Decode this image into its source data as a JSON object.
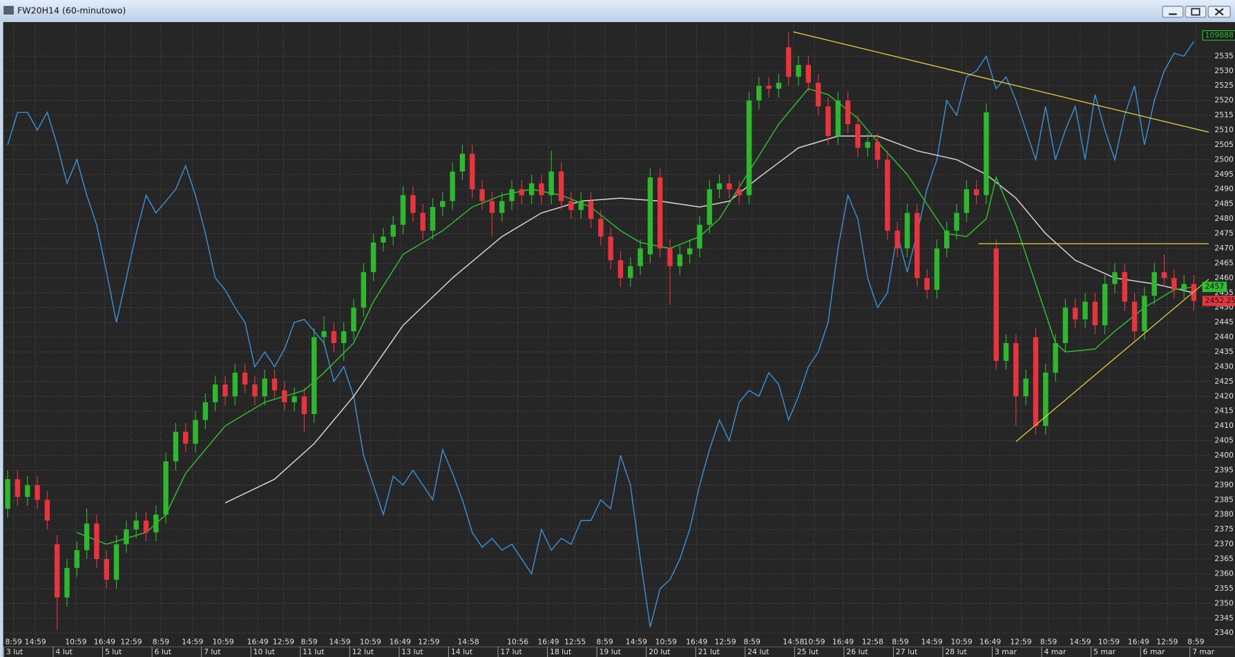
{
  "window": {
    "title": "FW20H14 (60-minutowo)"
  },
  "chart_data": {
    "type": "candlestick",
    "grid": true,
    "ylim": [
      2338,
      2546
    ],
    "yticks": [
      2340,
      2345,
      2350,
      2355,
      2360,
      2365,
      2370,
      2375,
      2380,
      2385,
      2390,
      2395,
      2400,
      2405,
      2410,
      2415,
      2420,
      2425,
      2430,
      2435,
      2440,
      2445,
      2450,
      2455,
      2460,
      2465,
      2470,
      2475,
      2480,
      2485,
      2490,
      2495,
      2500,
      2505,
      2510,
      2515,
      2520,
      2525,
      2530,
      2535
    ],
    "xlim": [
      -0.3,
      124
    ],
    "xticks": [
      {
        "value": 0.6,
        "label": "8:59"
      },
      {
        "value": 2.8,
        "label": "14:59"
      },
      {
        "value": 6.9,
        "label": "10:59"
      },
      {
        "value": 9.8,
        "label": "16:49"
      },
      {
        "value": 12.5,
        "label": "12:59"
      },
      {
        "value": 15.5,
        "label": "8:59"
      },
      {
        "value": 18.7,
        "label": "14:59"
      },
      {
        "value": 21.8,
        "label": "10:59"
      },
      {
        "value": 25.3,
        "label": "16:49"
      },
      {
        "value": 27.9,
        "label": "12:59"
      },
      {
        "value": 30.5,
        "label": "8:59"
      },
      {
        "value": 33.6,
        "label": "14:59"
      },
      {
        "value": 36.7,
        "label": "10:59"
      },
      {
        "value": 39.7,
        "label": "16:49"
      },
      {
        "value": 42.6,
        "label": "12:59"
      },
      {
        "value": 46.6,
        "label": "14:58"
      },
      {
        "value": 51.6,
        "label": "10:56"
      },
      {
        "value": 54.7,
        "label": "16:49"
      },
      {
        "value": 57.4,
        "label": "12:55"
      },
      {
        "value": 60.4,
        "label": "8:59"
      },
      {
        "value": 63.6,
        "label": "14:59"
      },
      {
        "value": 66.6,
        "label": "10:59"
      },
      {
        "value": 69.7,
        "label": "16:49"
      },
      {
        "value": 72.6,
        "label": "12:59"
      },
      {
        "value": 75.3,
        "label": "8:59"
      },
      {
        "value": 79.5,
        "label": "14:58"
      },
      {
        "value": 81.6,
        "label": "10:59"
      },
      {
        "value": 84.5,
        "label": "16:49"
      },
      {
        "value": 87.5,
        "label": "12:58"
      },
      {
        "value": 90.3,
        "label": "8:59"
      },
      {
        "value": 93.5,
        "label": "14:59"
      },
      {
        "value": 96.5,
        "label": "10:59"
      },
      {
        "value": 99.4,
        "label": "16:49"
      },
      {
        "value": 102.5,
        "label": "12:59"
      },
      {
        "value": 105.3,
        "label": "8:59"
      },
      {
        "value": 108.5,
        "label": "14:59"
      },
      {
        "value": 111.4,
        "label": "10:59"
      },
      {
        "value": 114.4,
        "label": "16:49"
      },
      {
        "value": 117.3,
        "label": "12:59"
      },
      {
        "value": 120.2,
        "label": "8:59"
      }
    ],
    "date_ticks": [
      {
        "value": 0,
        "label": "3 lut"
      },
      {
        "value": 5,
        "label": "4 lut"
      },
      {
        "value": 10,
        "label": "5 lut"
      },
      {
        "value": 15,
        "label": "6 lut"
      },
      {
        "value": 20,
        "label": "7 lut"
      },
      {
        "value": 25,
        "label": "10 lut"
      },
      {
        "value": 30,
        "label": "11 lut"
      },
      {
        "value": 35,
        "label": "12 lut"
      },
      {
        "value": 40,
        "label": "13 lut"
      },
      {
        "value": 45,
        "label": "14 lut"
      },
      {
        "value": 50,
        "label": "17 lut"
      },
      {
        "value": 55,
        "label": "18 lut"
      },
      {
        "value": 60,
        "label": "19 lut"
      },
      {
        "value": 65,
        "label": "20 lut"
      },
      {
        "value": 70,
        "label": "21 lut"
      },
      {
        "value": 75,
        "label": "24 lut"
      },
      {
        "value": 80,
        "label": "25 lut"
      },
      {
        "value": 85,
        "label": "26 lut"
      },
      {
        "value": 90,
        "label": "27 lut"
      },
      {
        "value": 95,
        "label": "28 lut"
      },
      {
        "value": 100,
        "label": "3 mar"
      },
      {
        "value": 105,
        "label": "4 mar"
      },
      {
        "value": 110,
        "label": "5 mar"
      },
      {
        "value": 115,
        "label": "6 mar"
      },
      {
        "value": 120,
        "label": "7 mar"
      }
    ],
    "candles": {
      "up_color": "#2db82d",
      "down_color": "#e8343c",
      "open": [
        2382,
        2392,
        2386,
        2390,
        2385,
        2370,
        2352,
        2362,
        2368,
        2377,
        2365,
        2358,
        2370,
        2375,
        2378,
        2374,
        2380,
        2398,
        2408,
        2404,
        2412,
        2418,
        2424,
        2420,
        2428,
        2424,
        2420,
        2426,
        2422,
        2418,
        2420,
        2414,
        2440,
        2442,
        2438,
        2442,
        2450,
        2462,
        2472,
        2474,
        2478,
        2488,
        2482,
        2476,
        2484,
        2486,
        2496,
        2502,
        2490,
        2486,
        2482,
        2486,
        2490,
        2488,
        2492,
        2488,
        2496,
        2486,
        2483,
        2486,
        2480,
        2474,
        2466,
        2460,
        2464,
        2468,
        2494,
        2470,
        2464,
        2468,
        2470,
        2478,
        2490,
        2492,
        2490,
        2488,
        2520,
        2525,
        2524,
        2538,
        2528,
        2532,
        2526,
        2518,
        2508,
        2520,
        2512,
        2504,
        2506,
        2500,
        2476,
        2470,
        2482,
        2460,
        2456,
        2470,
        2476,
        2482,
        2490,
        2488,
        2470,
        2432,
        2438,
        2420,
        2440,
        2410,
        2428,
        2438,
        2450,
        2446,
        2452,
        2444,
        2458,
        2462,
        2452,
        2442,
        2454,
        2462,
        2460,
        2456,
        2458
      ],
      "high": [
        2395,
        2395,
        2393,
        2393,
        2388,
        2373,
        2365,
        2371,
        2382,
        2380,
        2368,
        2373,
        2378,
        2381,
        2381,
        2383,
        2401,
        2411,
        2411,
        2415,
        2421,
        2427,
        2427,
        2431,
        2431,
        2427,
        2429,
        2429,
        2425,
        2423,
        2423,
        2443,
        2447,
        2445,
        2445,
        2453,
        2465,
        2475,
        2477,
        2481,
        2491,
        2491,
        2485,
        2487,
        2489,
        2499,
        2505,
        2505,
        2493,
        2489,
        2489,
        2493,
        2493,
        2495,
        2495,
        2503,
        2499,
        2489,
        2489,
        2489,
        2483,
        2477,
        2469,
        2467,
        2473,
        2497,
        2497,
        2473,
        2471,
        2473,
        2481,
        2493,
        2495,
        2495,
        2493,
        2523,
        2528,
        2528,
        2529,
        2543,
        2535,
        2535,
        2529,
        2521,
        2523,
        2523,
        2515,
        2509,
        2509,
        2503,
        2479,
        2485,
        2485,
        2463,
        2473,
        2479,
        2485,
        2493,
        2493,
        2519,
        2473,
        2441,
        2441,
        2429,
        2443,
        2431,
        2441,
        2453,
        2453,
        2455,
        2455,
        2461,
        2465,
        2465,
        2455,
        2457,
        2465,
        2468,
        2463,
        2461,
        2461
      ],
      "low": [
        2379,
        2383,
        2383,
        2382,
        2375,
        2341,
        2349,
        2359,
        2365,
        2362,
        2355,
        2355,
        2367,
        2372,
        2371,
        2371,
        2377,
        2395,
        2401,
        2401,
        2409,
        2415,
        2417,
        2417,
        2421,
        2417,
        2417,
        2419,
        2415,
        2415,
        2408,
        2411,
        2437,
        2435,
        2432,
        2439,
        2447,
        2459,
        2469,
        2471,
        2475,
        2479,
        2473,
        2473,
        2481,
        2483,
        2493,
        2487,
        2483,
        2474,
        2479,
        2483,
        2485,
        2485,
        2485,
        2485,
        2483,
        2480,
        2480,
        2477,
        2471,
        2463,
        2457,
        2457,
        2461,
        2465,
        2467,
        2451,
        2461,
        2465,
        2467,
        2475,
        2487,
        2487,
        2485,
        2485,
        2517,
        2521,
        2521,
        2525,
        2525,
        2523,
        2515,
        2505,
        2505,
        2509,
        2501,
        2501,
        2497,
        2473,
        2467,
        2467,
        2457,
        2453,
        2453,
        2467,
        2473,
        2479,
        2485,
        2485,
        2429,
        2429,
        2410,
        2417,
        2407,
        2407,
        2425,
        2435,
        2443,
        2443,
        2441,
        2441,
        2455,
        2449,
        2439,
        2439,
        2451,
        2457,
        2453,
        2453,
        2449
      ],
      "close": [
        2392,
        2386,
        2390,
        2385,
        2378,
        2352,
        2362,
        2368,
        2377,
        2365,
        2358,
        2370,
        2375,
        2378,
        2374,
        2380,
        2398,
        2408,
        2404,
        2412,
        2418,
        2424,
        2420,
        2428,
        2424,
        2420,
        2426,
        2422,
        2418,
        2420,
        2414,
        2440,
        2442,
        2438,
        2442,
        2450,
        2462,
        2472,
        2474,
        2478,
        2488,
        2482,
        2476,
        2484,
        2486,
        2496,
        2502,
        2490,
        2486,
        2482,
        2486,
        2490,
        2488,
        2492,
        2488,
        2496,
        2486,
        2483,
        2486,
        2480,
        2474,
        2466,
        2460,
        2464,
        2470,
        2494,
        2470,
        2464,
        2468,
        2470,
        2478,
        2490,
        2492,
        2490,
        2488,
        2520,
        2525,
        2524,
        2526,
        2528,
        2532,
        2526,
        2518,
        2508,
        2520,
        2512,
        2504,
        2506,
        2500,
        2476,
        2470,
        2482,
        2460,
        2456,
        2470,
        2476,
        2482,
        2490,
        2488,
        2516,
        2432,
        2438,
        2420,
        2426,
        2410,
        2428,
        2438,
        2450,
        2446,
        2452,
        2444,
        2458,
        2462,
        2452,
        2442,
        2454,
        2462,
        2460,
        2456,
        2458,
        2452.25
      ]
    },
    "series": [
      {
        "type": "line",
        "color": "#2fbf2f",
        "x": [
          7,
          10,
          14,
          16,
          18,
          22,
          26,
          30,
          32,
          35,
          37,
          40,
          44,
          47,
          50,
          53,
          56,
          59,
          62,
          64,
          67,
          70,
          72,
          75,
          78,
          81,
          83,
          86,
          88,
          91,
          93,
          95,
          97,
          99,
          100,
          102,
          104,
          106,
          107,
          110,
          112,
          115,
          118,
          120
        ],
        "values": [
          2374,
          2370,
          2374,
          2380,
          2394,
          2410,
          2418,
          2422,
          2428,
          2438,
          2452,
          2468,
          2476,
          2484,
          2488,
          2490,
          2488,
          2484,
          2476,
          2472,
          2470,
          2474,
          2480,
          2496,
          2512,
          2524,
          2522,
          2514,
          2506,
          2495,
          2485,
          2475,
          2474,
          2480,
          2494,
          2478,
          2458,
          2438,
          2435,
          2436,
          2442,
          2450,
          2456,
          2457
        ]
      },
      {
        "type": "line",
        "color": "#d8d8d8",
        "x": [
          22,
          27,
          31,
          35,
          40,
          45,
          50,
          54,
          58,
          62,
          66,
          70,
          73,
          76,
          80,
          84,
          88,
          92,
          96,
          99,
          102,
          105,
          108,
          112,
          116,
          120
        ],
        "values": [
          2384,
          2392,
          2404,
          2420,
          2444,
          2460,
          2474,
          2482,
          2486,
          2487,
          2486,
          2484,
          2486,
          2494,
          2504,
          2508,
          2508,
          2503,
          2500,
          2495,
          2487,
          2475,
          2466,
          2460,
          2458,
          2455
        ]
      },
      {
        "type": "line",
        "color": "#3a8fd0",
        "values": [
          2505,
          2516,
          2516,
          2510,
          2516,
          2505,
          2492,
          2500,
          2488,
          2478,
          2462,
          2445,
          2460,
          2475,
          2488,
          2482,
          2486,
          2490,
          2498,
          2488,
          2475,
          2460,
          2456,
          2450,
          2445,
          2430,
          2435,
          2430,
          2436,
          2445,
          2446,
          2442,
          2438,
          2425,
          2430,
          2420,
          2400,
          2390,
          2380,
          2393,
          2390,
          2395,
          2390,
          2385,
          2402,
          2394,
          2385,
          2374,
          2369,
          2372,
          2368,
          2370,
          2365,
          2360,
          2375,
          2368,
          2372,
          2370,
          2378,
          2378,
          2385,
          2382,
          2400,
          2390,
          2365,
          2342,
          2355,
          2358,
          2365,
          2375,
          2390,
          2402,
          2412,
          2405,
          2418,
          2422,
          2420,
          2428,
          2424,
          2412,
          2420,
          2430,
          2435,
          2445,
          2470,
          2488,
          2480,
          2460,
          2450,
          2455,
          2475,
          2462,
          2475,
          2490,
          2500,
          2520,
          2515,
          2528,
          2530,
          2535,
          2524,
          2528,
          2520,
          2510,
          2500,
          2518,
          2500,
          2510,
          2518,
          2500,
          2522,
          2510,
          2500,
          2515,
          2525,
          2505,
          2520,
          2530,
          2536,
          2535,
          2540
        ]
      }
    ],
    "trendlines": [
      {
        "color": "#e8d83a",
        "x": [
          79.5,
          121.5
        ],
        "y": [
          2543.2,
          2509.3
        ]
      },
      {
        "color": "#e8d83a",
        "x": [
          98.2,
          121.5
        ],
        "y": [
          2471.6,
          2471.6
        ]
      },
      {
        "color": "#e8d83a",
        "x": [
          102,
          121.5
        ],
        "y": [
          2404.7,
          2459.6
        ]
      }
    ],
    "indicator_badge": {
      "value": 109888,
      "color": "#2fbf2f"
    },
    "price_badges": [
      {
        "value": 2457,
        "color": "#2fbf2f"
      },
      {
        "value": 2452.25,
        "color": "#e8343c"
      }
    ]
  }
}
